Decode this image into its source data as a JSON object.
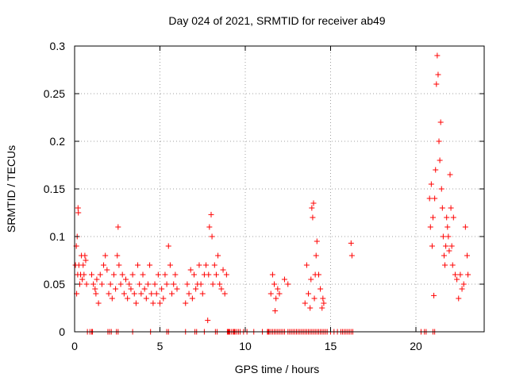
{
  "chart_data": {
    "type": "scatter",
    "title": "Day 024 of 2021, SRMTID for receiver ab49",
    "xlabel": "GPS time / hours",
    "ylabel": "SRMTID / TECUs",
    "xlim": [
      0,
      24
    ],
    "ylim": [
      0,
      0.3
    ],
    "xticks": [
      0,
      5,
      10,
      15,
      20
    ],
    "xtick_labels": [
      "0",
      "5",
      "10",
      "15",
      "20"
    ],
    "yticks": [
      0,
      0.05,
      0.1,
      0.15,
      0.2,
      0.25,
      0.3
    ],
    "ytick_labels": [
      "0",
      "0.05",
      "0.1",
      "0.15",
      "0.2",
      "0.25",
      "0.3"
    ],
    "grid": true,
    "marker": "+",
    "series": [
      {
        "name": "SRMTID",
        "color": "#ff0000",
        "points": [
          [
            0.05,
            0.07
          ],
          [
            0.1,
            0.09
          ],
          [
            0.12,
            0.04
          ],
          [
            0.15,
            0.1
          ],
          [
            0.18,
            0.06
          ],
          [
            0.2,
            0.13
          ],
          [
            0.22,
            0.125
          ],
          [
            0.25,
            0.07
          ],
          [
            0.3,
            0.05
          ],
          [
            0.35,
            0.06
          ],
          [
            0.4,
            0.08
          ],
          [
            0.45,
            0.055
          ],
          [
            0.5,
            0.07
          ],
          [
            0.55,
            0.06
          ],
          [
            0.6,
            0.08
          ],
          [
            0.65,
            0.075
          ],
          [
            0.7,
            0.05
          ],
          [
            1.0,
            0.06
          ],
          [
            1.1,
            0.05
          ],
          [
            1.2,
            0.045
          ],
          [
            1.25,
            0.04
          ],
          [
            1.3,
            0.055
          ],
          [
            1.4,
            0.03
          ],
          [
            1.5,
            0.06
          ],
          [
            1.6,
            0.05
          ],
          [
            1.7,
            0.07
          ],
          [
            1.8,
            0.08
          ],
          [
            1.9,
            0.065
          ],
          [
            2.0,
            0.04
          ],
          [
            2.1,
            0.05
          ],
          [
            2.2,
            0.035
          ],
          [
            2.3,
            0.06
          ],
          [
            2.4,
            0.045
          ],
          [
            2.5,
            0.08
          ],
          [
            2.55,
            0.11
          ],
          [
            2.6,
            0.07
          ],
          [
            2.7,
            0.05
          ],
          [
            2.8,
            0.06
          ],
          [
            2.9,
            0.04
          ],
          [
            3.0,
            0.055
          ],
          [
            3.1,
            0.035
          ],
          [
            3.2,
            0.05
          ],
          [
            3.3,
            0.045
          ],
          [
            3.4,
            0.06
          ],
          [
            3.5,
            0.04
          ],
          [
            3.6,
            0.03
          ],
          [
            3.7,
            0.07
          ],
          [
            3.8,
            0.05
          ],
          [
            3.9,
            0.04
          ],
          [
            4.0,
            0.06
          ],
          [
            4.1,
            0.045
          ],
          [
            4.2,
            0.035
          ],
          [
            4.3,
            0.05
          ],
          [
            4.4,
            0.07
          ],
          [
            4.5,
            0.04
          ],
          [
            4.6,
            0.03
          ],
          [
            4.7,
            0.05
          ],
          [
            4.8,
            0.04
          ],
          [
            4.9,
            0.06
          ],
          [
            5.0,
            0.03
          ],
          [
            5.1,
            0.045
          ],
          [
            5.2,
            0.035
          ],
          [
            5.3,
            0.06
          ],
          [
            5.4,
            0.05
          ],
          [
            5.5,
            0.09
          ],
          [
            5.6,
            0.07
          ],
          [
            5.7,
            0.04
          ],
          [
            5.8,
            0.05
          ],
          [
            5.9,
            0.06
          ],
          [
            6.0,
            0.045
          ],
          [
            6.5,
            0.03
          ],
          [
            6.6,
            0.05
          ],
          [
            6.7,
            0.04
          ],
          [
            6.8,
            0.065
          ],
          [
            6.9,
            0.035
          ],
          [
            7.0,
            0.06
          ],
          [
            7.1,
            0.045
          ],
          [
            7.2,
            0.05
          ],
          [
            7.3,
            0.07
          ],
          [
            7.4,
            0.05
          ],
          [
            7.5,
            0.04
          ],
          [
            7.6,
            0.06
          ],
          [
            7.7,
            0.07
          ],
          [
            7.8,
            0.012
          ],
          [
            7.85,
            0.06
          ],
          [
            7.9,
            0.11
          ],
          [
            8.0,
            0.123
          ],
          [
            8.05,
            0.1
          ],
          [
            8.1,
            0.05
          ],
          [
            8.2,
            0.07
          ],
          [
            8.3,
            0.06
          ],
          [
            8.4,
            0.08
          ],
          [
            8.5,
            0.05
          ],
          [
            8.6,
            0.045
          ],
          [
            8.7,
            0.065
          ],
          [
            8.8,
            0.04
          ],
          [
            8.9,
            0.06
          ],
          [
            11.5,
            0.04
          ],
          [
            11.6,
            0.06
          ],
          [
            11.7,
            0.05
          ],
          [
            11.75,
            0.022
          ],
          [
            11.8,
            0.035
          ],
          [
            11.9,
            0.045
          ],
          [
            12.0,
            0.04
          ],
          [
            12.3,
            0.055
          ],
          [
            12.5,
            0.05
          ],
          [
            13.5,
            0.03
          ],
          [
            13.6,
            0.07
          ],
          [
            13.7,
            0.04
          ],
          [
            13.8,
            0.025
          ],
          [
            13.85,
            0.055
          ],
          [
            13.9,
            0.13
          ],
          [
            13.95,
            0.12
          ],
          [
            14.0,
            0.135
          ],
          [
            14.05,
            0.035
          ],
          [
            14.1,
            0.06
          ],
          [
            14.15,
            0.08
          ],
          [
            14.2,
            0.095
          ],
          [
            14.3,
            0.06
          ],
          [
            14.4,
            0.045
          ],
          [
            14.5,
            0.025
          ],
          [
            14.55,
            0.035
          ],
          [
            14.6,
            0.03
          ],
          [
            16.2,
            0.093
          ],
          [
            16.25,
            0.08
          ],
          [
            20.8,
            0.14
          ],
          [
            20.85,
            0.11
          ],
          [
            20.9,
            0.155
          ],
          [
            20.95,
            0.09
          ],
          [
            21.0,
            0.12
          ],
          [
            21.05,
            0.038
          ],
          [
            21.1,
            0.14
          ],
          [
            21.15,
            0.17
          ],
          [
            21.2,
            0.26
          ],
          [
            21.25,
            0.29
          ],
          [
            21.3,
            0.27
          ],
          [
            21.35,
            0.2
          ],
          [
            21.4,
            0.18
          ],
          [
            21.45,
            0.22
          ],
          [
            21.5,
            0.15
          ],
          [
            21.55,
            0.13
          ],
          [
            21.6,
            0.1
          ],
          [
            21.65,
            0.08
          ],
          [
            21.7,
            0.07
          ],
          [
            21.75,
            0.09
          ],
          [
            21.8,
            0.12
          ],
          [
            21.85,
            0.11
          ],
          [
            21.9,
            0.1
          ],
          [
            21.95,
            0.085
          ],
          [
            22.0,
            0.165
          ],
          [
            22.05,
            0.13
          ],
          [
            22.1,
            0.09
          ],
          [
            22.15,
            0.07
          ],
          [
            22.2,
            0.12
          ],
          [
            22.3,
            0.06
          ],
          [
            22.4,
            0.055
          ],
          [
            22.5,
            0.035
          ],
          [
            22.6,
            0.06
          ],
          [
            22.7,
            0.045
          ],
          [
            22.8,
            0.05
          ],
          [
            22.9,
            0.11
          ],
          [
            23.0,
            0.08
          ],
          [
            23.05,
            0.06
          ]
        ]
      }
    ],
    "zero_points_x": [
      0.75,
      0.9,
      1.0,
      1.05,
      1.95,
      2.05,
      2.15,
      2.45,
      2.55,
      3.4,
      4.45,
      5.4,
      5.5,
      6.5,
      7.05,
      7.15,
      7.6,
      8.25,
      8.35,
      8.95,
      9.0,
      9.05,
      9.1,
      9.2,
      9.3,
      9.35,
      9.4,
      9.5,
      9.6,
      9.7,
      9.9,
      10.1,
      10.5,
      11.0,
      11.3,
      11.35,
      11.4,
      11.5,
      11.6,
      11.7,
      11.8,
      11.9,
      12.0,
      12.1,
      12.2,
      12.3,
      12.5,
      12.6,
      12.7,
      12.8,
      12.9,
      13.0,
      13.1,
      13.2,
      13.3,
      13.4,
      13.5,
      13.6,
      13.7,
      13.8,
      13.9,
      14.0,
      14.1,
      14.2,
      14.3,
      14.4,
      14.5,
      14.6,
      14.7,
      14.8,
      15.0,
      15.2,
      15.4,
      15.6,
      15.7,
      15.8,
      15.9,
      16.0,
      16.1,
      16.2,
      16.3,
      20.3,
      20.5,
      20.6,
      21.0,
      21.1
    ]
  }
}
